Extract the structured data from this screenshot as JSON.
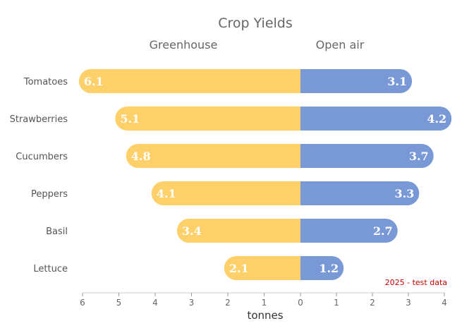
{
  "chart_data": {
    "type": "bar",
    "orientation": "horizontal-diverging",
    "title": "Crop Yields",
    "categories": [
      "Tomatoes",
      "Strawberries",
      "Cucumbers",
      "Peppers",
      "Basil",
      "Lettuce"
    ],
    "series": [
      {
        "name": "Greenhouse",
        "values": [
          6.1,
          5.1,
          4.8,
          4.1,
          3.4,
          2.1
        ],
        "color": "#fdd06a",
        "side": "left"
      },
      {
        "name": "Open air",
        "values": [
          3.1,
          4.2,
          3.7,
          3.3,
          2.7,
          1.2
        ],
        "color": "#7899d6",
        "side": "right"
      }
    ],
    "xlabel": "tonnes",
    "left_ticks": [
      "6",
      "5",
      "4",
      "3",
      "2",
      "1",
      "0"
    ],
    "right_ticks": [
      "1",
      "2",
      "3",
      "4"
    ],
    "xlim_left": [
      0,
      6
    ],
    "xlim_right": [
      0,
      4
    ],
    "grid": false,
    "note": "2025 - test data",
    "note_color": "#cc0000"
  }
}
